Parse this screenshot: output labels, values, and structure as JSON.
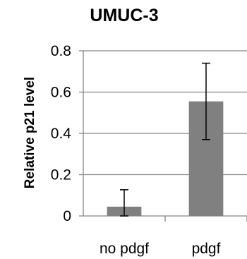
{
  "chart_data": {
    "type": "bar",
    "title": "UMUC-3",
    "xlabel": "",
    "ylabel": "Relative p21 level",
    "categories": [
      "no pdgf",
      "pdgf"
    ],
    "values": [
      0.045,
      0.555
    ],
    "errors": [
      0.082,
      0.185
    ],
    "ylim": [
      0,
      0.8
    ],
    "yticks": [
      "0",
      "0.2",
      "0.4",
      "0.6",
      "0.8"
    ],
    "grid": true,
    "bar_color": "#808080",
    "grid_color": "#868686"
  }
}
